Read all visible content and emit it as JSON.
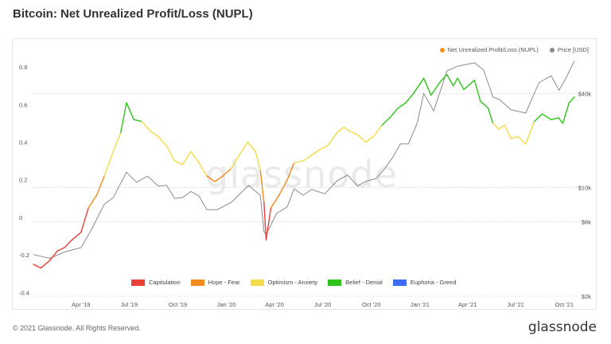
{
  "page": {
    "title": "Bitcoin: Net Unrealized Profit/Loss (NUPL)",
    "footer_copyright": "© 2021 Glassnode. All Rights Reserved.",
    "footer_logo": "glassnode",
    "watermark": "glassnode"
  },
  "legend": {
    "nupl_label": "Net Unrealized Profit/Loss (NUPL)",
    "price_label": "Price [USD]",
    "nupl_color": "#f7931a",
    "price_color": "#888888"
  },
  "bands": [
    {
      "label": "Capitulation",
      "color": "#e8403b",
      "range": [
        -1,
        0
      ]
    },
    {
      "label": "Hope - Fear",
      "color": "#f28a1e",
      "range": [
        0,
        0.25
      ]
    },
    {
      "label": "Optimism - Anxiety",
      "color": "#f2dc4a",
      "range": [
        0.25,
        0.5
      ]
    },
    {
      "label": "Belief - Denial",
      "color": "#2ec41c",
      "range": [
        0.5,
        0.75
      ]
    },
    {
      "label": "Euphoria - Greed",
      "color": "#3c6cf0",
      "range": [
        0.75,
        1
      ]
    }
  ],
  "chart_data": {
    "type": "line",
    "title": "Bitcoin: Net Unrealized Profit/Loss (NUPL)",
    "x_ticks": [
      "Apr '19",
      "Jul '19",
      "Oct '19",
      "Jan '20",
      "Apr '20",
      "Jul '20",
      "Oct '20",
      "Jan '21",
      "Apr '21",
      "Jul '21",
      "Oct '21"
    ],
    "x_tick_dates": [
      "2019-04-01",
      "2019-07-01",
      "2019-10-01",
      "2020-01-01",
      "2020-04-01",
      "2020-07-01",
      "2020-10-01",
      "2021-01-01",
      "2021-04-01",
      "2021-07-01",
      "2021-10-01"
    ],
    "x_range": [
      "2019-01-01",
      "2021-10-20"
    ],
    "y_left": {
      "ticks": [
        -0.4,
        -0.2,
        0,
        0.2,
        0.4,
        0.6,
        0.8
      ],
      "tick_labels": [
        "-0.4",
        "-0.2",
        "0",
        "0.2",
        "0.4",
        "0.6",
        "0.8"
      ],
      "range": [
        -0.42,
        0.86
      ]
    },
    "y_right": {
      "scale": "log",
      "ticks": [
        2000,
        6000,
        10000,
        40000
      ],
      "tick_labels": [
        "$2k",
        "$6k",
        "$10k",
        "$40k"
      ],
      "range": [
        2000,
        70000
      ]
    },
    "legend_position": "top-right",
    "grid": "dotted horizontal",
    "series": [
      {
        "name": "Net Unrealized Profit/Loss (NUPL)",
        "axis": "left",
        "x": [
          "2019-01-01",
          "2019-01-15",
          "2019-02-01",
          "2019-02-15",
          "2019-03-01",
          "2019-03-15",
          "2019-04-01",
          "2019-04-15",
          "2019-05-01",
          "2019-05-15",
          "2019-06-01",
          "2019-06-15",
          "2019-06-26",
          "2019-07-10",
          "2019-07-25",
          "2019-08-10",
          "2019-08-25",
          "2019-09-10",
          "2019-09-25",
          "2019-10-10",
          "2019-10-26",
          "2019-11-10",
          "2019-11-25",
          "2019-12-10",
          "2019-12-25",
          "2020-01-10",
          "2020-01-25",
          "2020-02-10",
          "2020-02-25",
          "2020-03-05",
          "2020-03-12",
          "2020-03-16",
          "2020-03-25",
          "2020-04-10",
          "2020-04-25",
          "2020-05-08",
          "2020-05-25",
          "2020-06-10",
          "2020-06-25",
          "2020-07-10",
          "2020-07-28",
          "2020-08-10",
          "2020-08-20",
          "2020-09-05",
          "2020-09-20",
          "2020-10-05",
          "2020-10-21",
          "2020-11-05",
          "2020-11-20",
          "2020-12-05",
          "2020-12-20",
          "2021-01-08",
          "2021-01-22",
          "2021-02-08",
          "2021-02-21",
          "2021-03-05",
          "2021-03-13",
          "2021-03-25",
          "2021-04-14",
          "2021-04-25",
          "2021-05-10",
          "2021-05-19",
          "2021-05-30",
          "2021-06-10",
          "2021-06-22",
          "2021-07-05",
          "2021-07-20",
          "2021-08-05",
          "2021-08-20",
          "2021-09-06",
          "2021-09-20",
          "2021-09-28",
          "2021-10-10",
          "2021-10-20"
        ],
        "y": [
          -0.25,
          -0.27,
          -0.23,
          -0.18,
          -0.16,
          -0.12,
          -0.08,
          0.05,
          0.12,
          0.22,
          0.35,
          0.45,
          0.61,
          0.52,
          0.51,
          0.46,
          0.43,
          0.38,
          0.3,
          0.28,
          0.35,
          0.29,
          0.22,
          0.19,
          0.22,
          0.26,
          0.33,
          0.4,
          0.35,
          0.25,
          0.08,
          -0.12,
          0.05,
          0.12,
          0.2,
          0.29,
          0.3,
          0.33,
          0.36,
          0.38,
          0.45,
          0.48,
          0.46,
          0.44,
          0.4,
          0.43,
          0.49,
          0.53,
          0.58,
          0.61,
          0.66,
          0.74,
          0.65,
          0.72,
          0.76,
          0.7,
          0.74,
          0.68,
          0.73,
          0.62,
          0.58,
          0.5,
          0.47,
          0.49,
          0.42,
          0.43,
          0.39,
          0.51,
          0.55,
          0.52,
          0.53,
          0.5,
          0.61,
          0.64
        ]
      },
      {
        "name": "Price [USD]",
        "axis": "right",
        "x": [
          "2019-01-01",
          "2019-02-01",
          "2019-03-01",
          "2019-04-01",
          "2019-04-20",
          "2019-05-15",
          "2019-06-01",
          "2019-06-26",
          "2019-07-15",
          "2019-08-05",
          "2019-08-25",
          "2019-09-10",
          "2019-09-25",
          "2019-10-10",
          "2019-10-26",
          "2019-11-10",
          "2019-11-25",
          "2019-12-15",
          "2020-01-10",
          "2020-02-12",
          "2020-03-05",
          "2020-03-12",
          "2020-03-16",
          "2020-04-05",
          "2020-04-25",
          "2020-05-08",
          "2020-05-25",
          "2020-06-10",
          "2020-07-05",
          "2020-07-28",
          "2020-08-17",
          "2020-09-05",
          "2020-09-20",
          "2020-10-10",
          "2020-10-25",
          "2020-11-10",
          "2020-11-25",
          "2020-12-10",
          "2020-12-27",
          "2021-01-08",
          "2021-01-27",
          "2021-02-21",
          "2021-03-13",
          "2021-04-14",
          "2021-05-01",
          "2021-05-19",
          "2021-06-01",
          "2021-06-22",
          "2021-07-20",
          "2021-08-14",
          "2021-09-06",
          "2021-09-21",
          "2021-10-05",
          "2021-10-20"
        ],
        "y": [
          3700,
          3500,
          3850,
          4100,
          5300,
          7800,
          8600,
          12500,
          10800,
          11800,
          10200,
          10300,
          8500,
          8600,
          9400,
          8800,
          7200,
          7200,
          8000,
          10300,
          8900,
          5200,
          5000,
          6800,
          7500,
          9800,
          8900,
          9700,
          9100,
          11000,
          12000,
          10200,
          10900,
          11400,
          13000,
          15500,
          19000,
          19000,
          26000,
          40000,
          31000,
          56000,
          60000,
          63000,
          57000,
          38000,
          36500,
          31500,
          30000,
          47000,
          52000,
          42000,
          51000,
          65000
        ]
      }
    ]
  }
}
